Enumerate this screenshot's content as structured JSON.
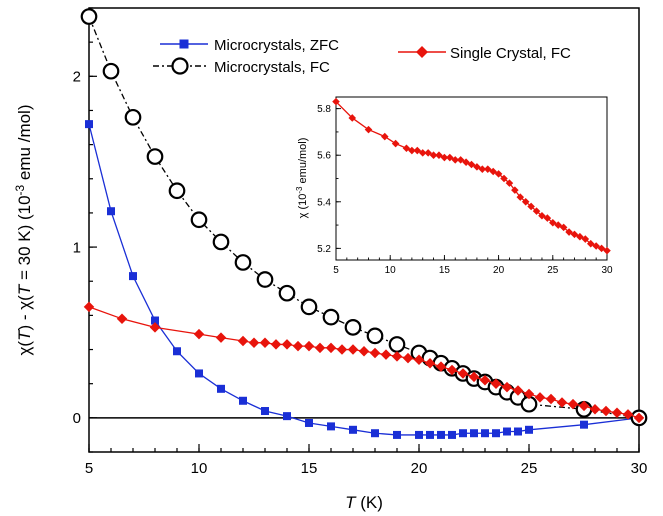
{
  "chart_data": [
    {
      "type": "line",
      "title": "",
      "xlabel_italic": "T",
      "xlabel_unit": " (K)",
      "ylabel_prefix": "χ(",
      "ylabel_t1": "T",
      "ylabel_mid": ") - χ(",
      "ylabel_t2": "T",
      "ylabel_eq": " = 30 K)  (10",
      "ylabel_exp": "-3",
      "ylabel_unit": " emu /mol)",
      "xlim": [
        5,
        30
      ],
      "ylim": [
        -0.2,
        2.4
      ],
      "xticks": [
        "5",
        "10",
        "15",
        "20",
        "25",
        "30"
      ],
      "yticks": [
        "0",
        "1",
        "2"
      ],
      "grid": false,
      "zero_line": true,
      "legend": "top",
      "series": [
        {
          "name": "Microcrystals, ZFC",
          "color": "#1a2fd6",
          "marker": "square",
          "x": [
            5,
            6,
            7,
            8,
            9,
            10,
            11,
            12,
            13,
            14,
            15,
            16,
            17,
            18,
            19,
            20,
            20.5,
            21,
            21.5,
            22,
            22.5,
            23,
            23.5,
            24,
            24.5,
            25,
            27.5,
            30
          ],
          "y": [
            1.72,
            1.21,
            0.83,
            0.57,
            0.39,
            0.26,
            0.17,
            0.1,
            0.04,
            0.01,
            -0.03,
            -0.05,
            -0.07,
            -0.09,
            -0.1,
            -0.1,
            -0.1,
            -0.1,
            -0.1,
            -0.09,
            -0.09,
            -0.09,
            -0.09,
            -0.08,
            -0.08,
            -0.07,
            -0.04,
            0.0
          ]
        },
        {
          "name": "Microcrystals, FC",
          "color": "#000000",
          "marker": "open-circle",
          "x": [
            5,
            6,
            7,
            8,
            9,
            10,
            11,
            12,
            13,
            14,
            15,
            16,
            17,
            18,
            19,
            20,
            20.5,
            21,
            21.5,
            22,
            22.5,
            23,
            23.5,
            24,
            24.5,
            25,
            27.5,
            30
          ],
          "y": [
            2.35,
            2.03,
            1.76,
            1.53,
            1.33,
            1.16,
            1.03,
            0.91,
            0.81,
            0.73,
            0.65,
            0.59,
            0.53,
            0.48,
            0.43,
            0.38,
            0.35,
            0.32,
            0.29,
            0.26,
            0.23,
            0.21,
            0.18,
            0.15,
            0.12,
            0.08,
            0.05,
            0.0
          ]
        },
        {
          "name": "Single Crystal, FC",
          "color": "#e8140c",
          "marker": "diamond",
          "x": [
            5,
            6.5,
            8,
            10,
            11,
            12,
            12.5,
            13,
            13.5,
            14,
            14.5,
            15,
            15.5,
            16,
            16.5,
            17,
            17.5,
            18,
            18.5,
            19,
            19.5,
            20,
            20.5,
            21,
            21.5,
            22,
            22.5,
            23,
            23.5,
            24,
            24.5,
            25,
            25.5,
            26,
            26.5,
            27,
            27.5,
            28,
            28.5,
            29,
            29.5,
            30
          ],
          "y": [
            0.65,
            0.58,
            0.53,
            0.49,
            0.47,
            0.45,
            0.44,
            0.44,
            0.43,
            0.43,
            0.42,
            0.42,
            0.41,
            0.41,
            0.4,
            0.4,
            0.39,
            0.38,
            0.37,
            0.36,
            0.35,
            0.34,
            0.32,
            0.3,
            0.28,
            0.26,
            0.24,
            0.22,
            0.2,
            0.18,
            0.16,
            0.14,
            0.12,
            0.11,
            0.09,
            0.08,
            0.07,
            0.05,
            0.04,
            0.03,
            0.02,
            0.0
          ]
        }
      ]
    },
    {
      "type": "line",
      "title": "",
      "inset": true,
      "ylabel_prefix": "χ (10",
      "ylabel_exp": "-3",
      "ylabel_unit": " emu/mol)",
      "xlim": [
        5,
        30
      ],
      "ylim": [
        5.15,
        5.85
      ],
      "xticks": [
        "5",
        "10",
        "15",
        "20",
        "25",
        "30"
      ],
      "yticks": [
        "5.2",
        "5.4",
        "5.6",
        "5.8"
      ],
      "series": [
        {
          "name": "",
          "color": "#e8140c",
          "marker": "diamond",
          "x": [
            5,
            6.5,
            8,
            9.5,
            10.5,
            11.5,
            12,
            12.5,
            13,
            13.5,
            14,
            14.5,
            15,
            15.5,
            16,
            16.5,
            17,
            17.5,
            18,
            18.5,
            19,
            19.5,
            20,
            20.5,
            21,
            21.5,
            22,
            22.5,
            23,
            23.5,
            24,
            24.5,
            25,
            25.5,
            26,
            26.5,
            27,
            27.5,
            28,
            28.5,
            29,
            29.5,
            30
          ],
          "y": [
            5.83,
            5.76,
            5.71,
            5.68,
            5.65,
            5.63,
            5.62,
            5.62,
            5.61,
            5.61,
            5.6,
            5.6,
            5.59,
            5.59,
            5.58,
            5.58,
            5.57,
            5.56,
            5.55,
            5.54,
            5.54,
            5.53,
            5.52,
            5.5,
            5.48,
            5.45,
            5.42,
            5.4,
            5.38,
            5.36,
            5.34,
            5.33,
            5.31,
            5.3,
            5.29,
            5.27,
            5.26,
            5.25,
            5.24,
            5.22,
            5.21,
            5.2,
            5.19
          ]
        }
      ]
    }
  ]
}
